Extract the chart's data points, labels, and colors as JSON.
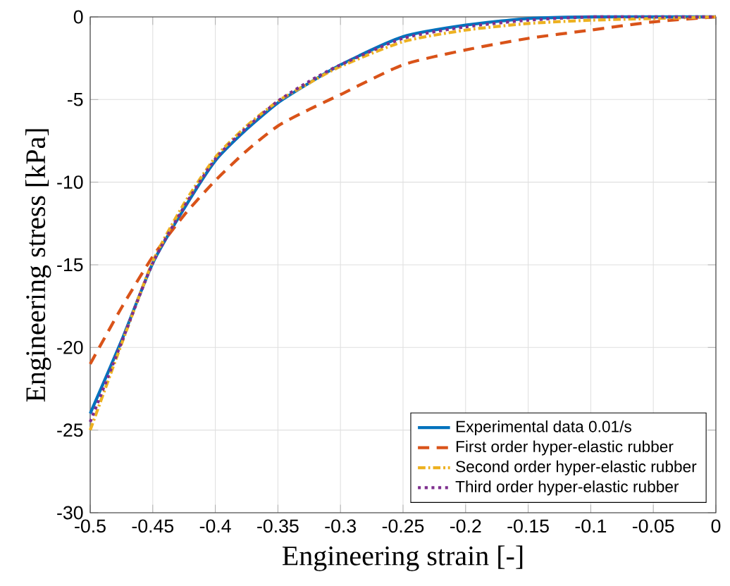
{
  "chart_data": {
    "type": "line",
    "xlabel": "Engineering strain [-]",
    "ylabel": "Engineering stress [kPa]",
    "x": [
      -0.5,
      -0.475,
      -0.45,
      -0.425,
      -0.4,
      -0.375,
      -0.35,
      -0.325,
      -0.3,
      -0.25,
      -0.2,
      -0.15,
      -0.1,
      -0.05,
      0
    ],
    "series": [
      {
        "name": "Experimental data 0.01/s",
        "color": "#0072bd",
        "line_style": "solid",
        "values": [
          -24,
          -19.6,
          -14.9,
          -11.6,
          -8.7,
          -6.8,
          -5.2,
          -4.0,
          -2.9,
          -1.2,
          -0.5,
          -0.1,
          0,
          0,
          0
        ]
      },
      {
        "name": "First order hyper-elastic rubber",
        "color": "#d95319",
        "line_style": "dashed",
        "values": [
          -21,
          -17.6,
          -14.5,
          -12,
          -9.9,
          -8.1,
          -6.6,
          -5.6,
          -4.7,
          -2.9,
          -2.0,
          -1.3,
          -0.8,
          -0.3,
          0
        ]
      },
      {
        "name": "Second order hyper-elastic rubber",
        "color": "#edb120",
        "line_style": "dashdot",
        "values": [
          -25,
          -19.8,
          -14.8,
          -11.3,
          -8.5,
          -6.6,
          -5.1,
          -4.0,
          -3.0,
          -1.5,
          -0.8,
          -0.4,
          -0.2,
          -0.1,
          0
        ]
      },
      {
        "name": "Third order hyper-elastic rubber",
        "color": "#7e2f8e",
        "line_style": "dotted",
        "values": [
          -24.5,
          -19.7,
          -14.9,
          -11.5,
          -8.6,
          -6.7,
          -5.1,
          -3.9,
          -2.9,
          -1.3,
          -0.6,
          -0.2,
          0,
          0,
          0
        ]
      }
    ],
    "xlim": [
      -0.5,
      0
    ],
    "ylim": [
      -30,
      0
    ],
    "xticks": [
      -0.5,
      -0.45,
      -0.4,
      -0.35,
      -0.3,
      -0.25,
      -0.2,
      -0.15,
      -0.1,
      -0.05,
      0
    ],
    "yticks": [
      -30,
      -25,
      -20,
      -15,
      -10,
      -5,
      0
    ],
    "grid": true,
    "legend": "bottom right",
    "marker": "none"
  }
}
